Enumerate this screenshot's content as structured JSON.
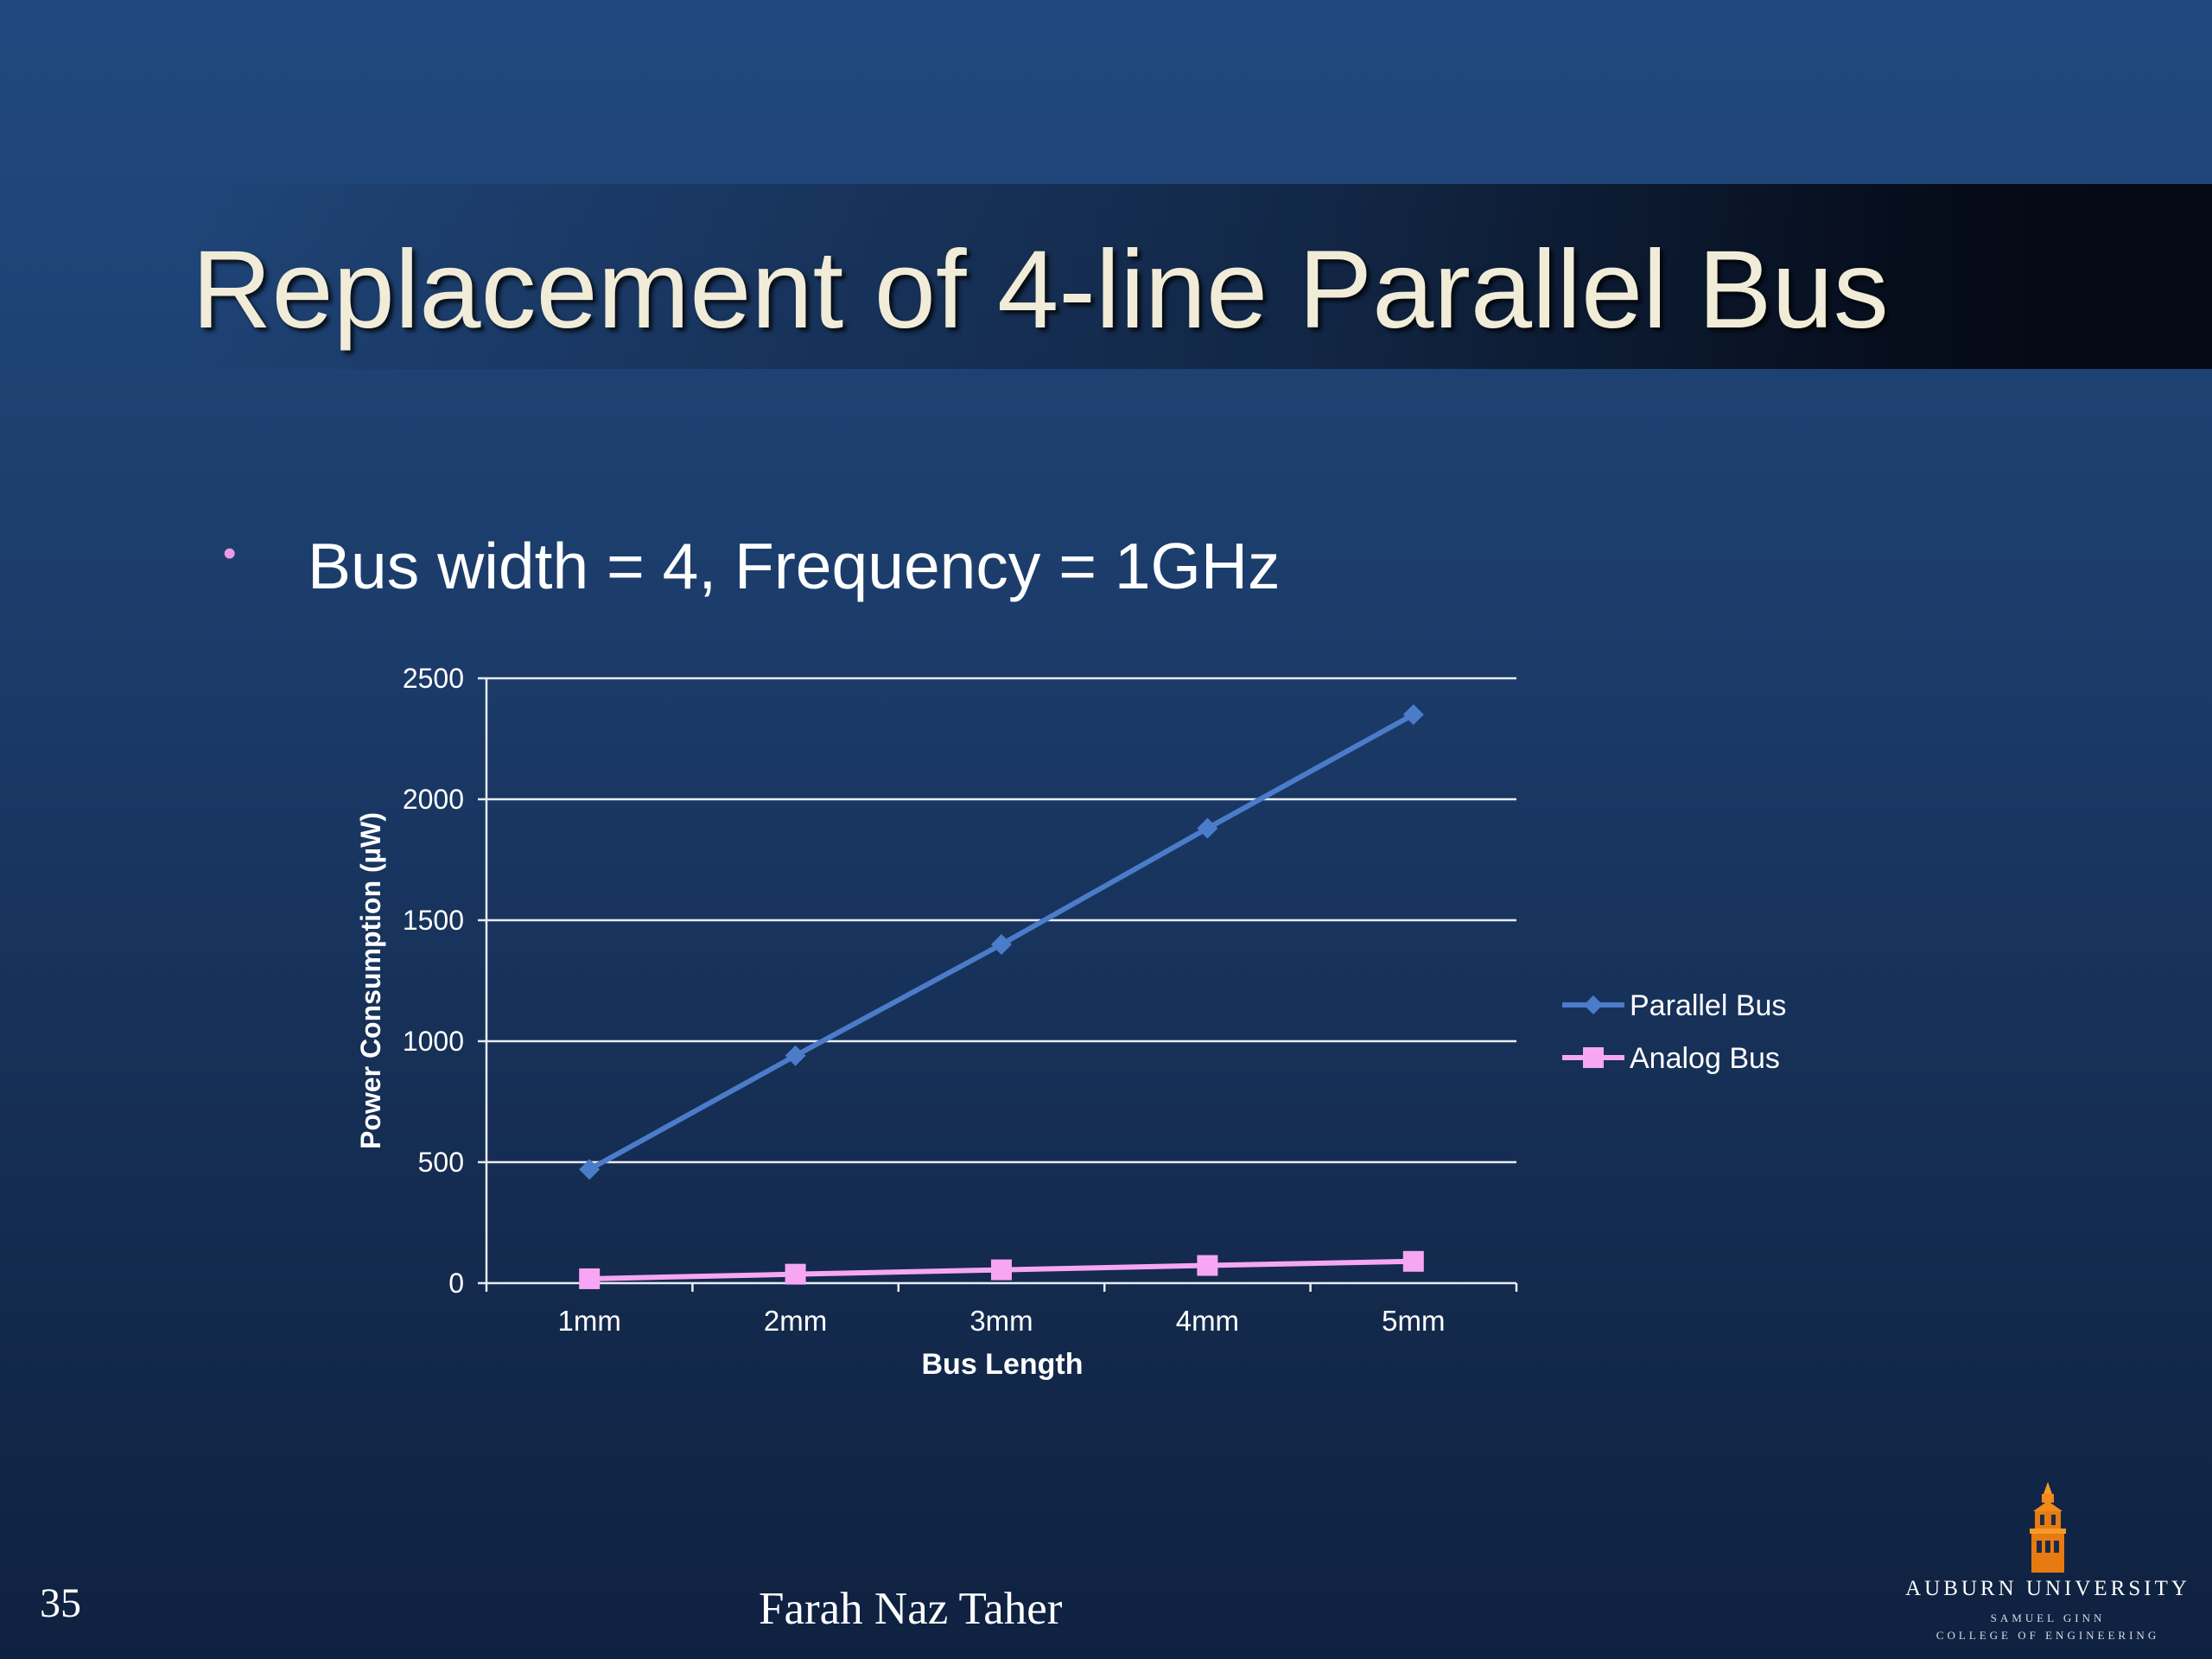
{
  "slide": {
    "title": "Replacement of 4-line Parallel Bus",
    "bullet": "Bus width = 4, Frequency = 1GHz",
    "slide_number": "35",
    "author": "Farah Naz Taher"
  },
  "logo": {
    "name": "AUBURN UNIVERSITY",
    "line1": "SAMUEL GINN",
    "line2": "COLLEGE OF ENGINEERING",
    "icon": "tower-icon"
  },
  "colors": {
    "background": "#1c3d6c",
    "parallel_bus": "#4a7cc9",
    "analog_bus": "#f6a6f3",
    "gridline": "#e8ecf3",
    "bullet": "#e79be4"
  },
  "chart_data": {
    "type": "line",
    "categories": [
      "1mm",
      "2mm",
      "3mm",
      "4mm",
      "5mm"
    ],
    "series": [
      {
        "name": "Parallel Bus",
        "marker": "diamond",
        "color": "#4a7cc9",
        "values": [
          470,
          940,
          1400,
          1880,
          2350
        ]
      },
      {
        "name": "Analog Bus",
        "marker": "square",
        "color": "#f6a6f3",
        "values": [
          18,
          37,
          55,
          73,
          90
        ]
      }
    ],
    "title": "",
    "xlabel": "Bus Length",
    "ylabel": "Power Consumption (µW)",
    "ylim": [
      0,
      2500
    ],
    "yticks": [
      0,
      500,
      1000,
      1500,
      2000,
      2500
    ],
    "grid": true,
    "legend": "right"
  }
}
